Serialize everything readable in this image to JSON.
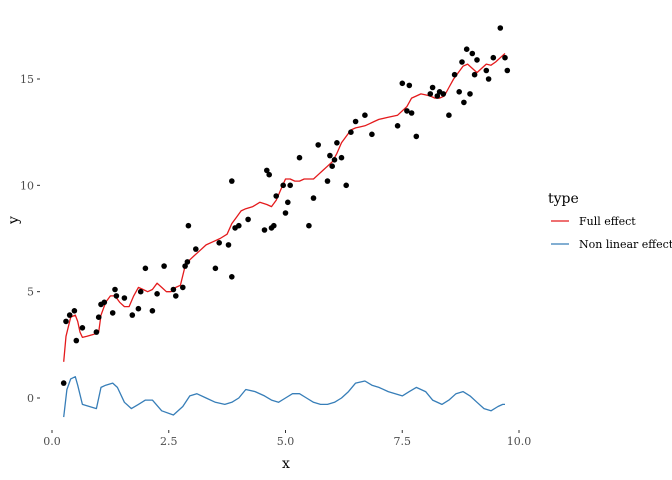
{
  "chart_data": {
    "type": "scatter",
    "xlabel": "x",
    "ylabel": "y",
    "xlim": [
      0,
      10
    ],
    "ylim": [
      -1.5,
      17.7
    ],
    "xticks": [
      0,
      2.5,
      5,
      7.5,
      10
    ],
    "xtick_labels": [
      "0.0",
      "2.5",
      "5.0",
      "7.5",
      "10.0"
    ],
    "yticks": [
      0,
      5,
      10,
      15
    ],
    "ytick_labels": [
      "0",
      "5",
      "10",
      "15"
    ],
    "grid": false,
    "legend": {
      "title": "type",
      "position": "right",
      "entries": [
        {
          "label": "Full effect",
          "color": "#e41a1c"
        },
        {
          "label": "Non linear effect",
          "color": "#377eb8"
        }
      ]
    },
    "points": {
      "color": "#000000",
      "x": [
        0.25,
        0.3,
        0.38,
        0.48,
        0.52,
        0.65,
        0.95,
        1.0,
        1.05,
        1.12,
        1.3,
        1.35,
        1.38,
        1.55,
        1.72,
        1.85,
        1.9,
        2.0,
        2.15,
        2.25,
        2.4,
        2.6,
        2.65,
        2.8,
        2.85,
        2.9,
        2.92,
        3.08,
        3.5,
        3.58,
        3.85,
        3.78,
        3.85,
        3.92,
        4.0,
        4.2,
        4.55,
        4.6,
        4.65,
        4.7,
        4.75,
        4.8,
        4.95,
        5.0,
        5.05,
        5.1,
        5.3,
        5.5,
        5.6,
        5.7,
        5.9,
        5.95,
        6.0,
        6.05,
        6.1,
        6.2,
        6.3,
        6.4,
        6.5,
        6.7,
        6.85,
        7.4,
        7.5,
        7.6,
        7.65,
        7.7,
        7.8,
        8.1,
        8.15,
        8.25,
        8.3,
        8.38,
        8.5,
        8.62,
        8.72,
        8.78,
        8.82,
        8.88,
        8.95,
        9.0,
        9.05,
        9.1,
        9.3,
        9.35,
        9.45,
        9.6,
        9.7,
        9.75
      ],
      "y": [
        0.7,
        3.6,
        3.9,
        4.1,
        2.7,
        3.3,
        3.1,
        3.8,
        4.4,
        4.5,
        4.0,
        5.1,
        4.8,
        4.7,
        3.9,
        4.2,
        5.0,
        6.1,
        4.1,
        4.9,
        6.2,
        5.1,
        4.8,
        5.2,
        6.2,
        6.4,
        8.1,
        7.0,
        6.1,
        7.3,
        10.2,
        7.2,
        5.7,
        8.0,
        8.1,
        8.4,
        7.9,
        10.7,
        10.5,
        8.0,
        8.1,
        9.5,
        10.0,
        8.7,
        9.2,
        10.0,
        11.3,
        8.1,
        9.4,
        11.9,
        10.2,
        11.4,
        10.9,
        11.2,
        12.0,
        11.3,
        10.0,
        12.5,
        13.0,
        13.3,
        12.4,
        12.8,
        14.8,
        13.5,
        14.7,
        13.4,
        12.3,
        14.3,
        14.6,
        14.2,
        14.4,
        14.3,
        13.3,
        15.2,
        14.4,
        15.8,
        13.9,
        16.4,
        14.3,
        16.2,
        15.2,
        15.9,
        15.4,
        15.0,
        16.0,
        17.4,
        16.0,
        15.4
      ]
    },
    "series": [
      {
        "name": "Full effect",
        "color": "#e41a1c",
        "x": [
          0.25,
          0.3,
          0.4,
          0.5,
          0.55,
          0.6,
          0.65,
          0.75,
          0.9,
          1.0,
          1.05,
          1.15,
          1.25,
          1.35,
          1.45,
          1.55,
          1.65,
          1.75,
          1.85,
          1.95,
          2.05,
          2.15,
          2.25,
          2.35,
          2.45,
          2.55,
          2.65,
          2.75,
          2.85,
          2.95,
          3.05,
          3.15,
          3.3,
          3.45,
          3.6,
          3.75,
          3.85,
          3.95,
          4.05,
          4.15,
          4.3,
          4.45,
          4.6,
          4.7,
          4.8,
          4.9,
          5.0,
          5.1,
          5.2,
          5.3,
          5.4,
          5.5,
          5.6,
          5.7,
          5.8,
          5.9,
          6.0,
          6.1,
          6.2,
          6.3,
          6.4,
          6.5,
          6.6,
          6.7,
          6.8,
          6.9,
          7.0,
          7.2,
          7.4,
          7.6,
          7.7,
          7.8,
          7.9,
          8.0,
          8.1,
          8.2,
          8.3,
          8.4,
          8.5,
          8.6,
          8.7,
          8.8,
          8.9,
          9.0,
          9.1,
          9.2,
          9.3,
          9.4,
          9.5,
          9.6,
          9.7
        ],
        "y": [
          1.7,
          2.9,
          3.8,
          3.9,
          3.6,
          3.1,
          2.85,
          2.9,
          3.0,
          3.1,
          3.9,
          4.5,
          4.8,
          4.8,
          4.5,
          4.3,
          4.3,
          4.8,
          5.2,
          5.1,
          5.0,
          5.1,
          5.4,
          5.2,
          5.0,
          5.0,
          5.2,
          5.3,
          6.2,
          6.5,
          6.7,
          6.9,
          7.2,
          7.35,
          7.5,
          7.7,
          8.2,
          8.5,
          8.8,
          8.9,
          9.0,
          9.2,
          9.1,
          9.0,
          9.3,
          9.8,
          10.3,
          10.3,
          10.2,
          10.2,
          10.3,
          10.3,
          10.3,
          10.5,
          10.7,
          10.9,
          11.1,
          11.5,
          12.0,
          12.3,
          12.6,
          12.7,
          12.75,
          12.8,
          12.9,
          13.0,
          13.1,
          13.2,
          13.3,
          13.7,
          14.1,
          14.2,
          14.3,
          14.25,
          14.2,
          14.1,
          14.1,
          14.2,
          14.6,
          15.0,
          15.3,
          15.6,
          15.7,
          15.5,
          15.3,
          15.5,
          15.7,
          15.65,
          15.8,
          16.0,
          16.2
        ]
      },
      {
        "name": "Non linear effect",
        "color": "#377eb8",
        "x": [
          0.25,
          0.32,
          0.4,
          0.5,
          0.55,
          0.65,
          0.95,
          1.05,
          1.15,
          1.3,
          1.4,
          1.55,
          1.7,
          1.85,
          2.0,
          2.15,
          2.35,
          2.6,
          2.8,
          2.95,
          3.1,
          3.3,
          3.5,
          3.7,
          3.85,
          4.0,
          4.15,
          4.35,
          4.55,
          4.7,
          4.85,
          5.0,
          5.15,
          5.3,
          5.45,
          5.6,
          5.75,
          5.9,
          6.05,
          6.2,
          6.35,
          6.5,
          6.7,
          6.85,
          7.0,
          7.2,
          7.5,
          7.65,
          7.8,
          8.0,
          8.15,
          8.35,
          8.5,
          8.65,
          8.8,
          8.95,
          9.1,
          9.25,
          9.4,
          9.55,
          9.65,
          9.7
        ],
        "y": [
          -0.9,
          0.4,
          0.9,
          1.0,
          0.6,
          -0.3,
          -0.5,
          0.5,
          0.6,
          0.7,
          0.5,
          -0.2,
          -0.5,
          -0.3,
          -0.1,
          -0.1,
          -0.6,
          -0.8,
          -0.4,
          0.1,
          0.2,
          0.0,
          -0.2,
          -0.3,
          -0.2,
          0.0,
          0.4,
          0.3,
          0.1,
          -0.1,
          -0.2,
          0.0,
          0.2,
          0.2,
          0.0,
          -0.2,
          -0.3,
          -0.3,
          -0.2,
          0.0,
          0.3,
          0.7,
          0.8,
          0.6,
          0.5,
          0.3,
          0.1,
          0.3,
          0.5,
          0.3,
          -0.1,
          -0.3,
          -0.1,
          0.2,
          0.3,
          0.1,
          -0.2,
          -0.5,
          -0.6,
          -0.4,
          -0.3,
          -0.3
        ]
      }
    ]
  }
}
